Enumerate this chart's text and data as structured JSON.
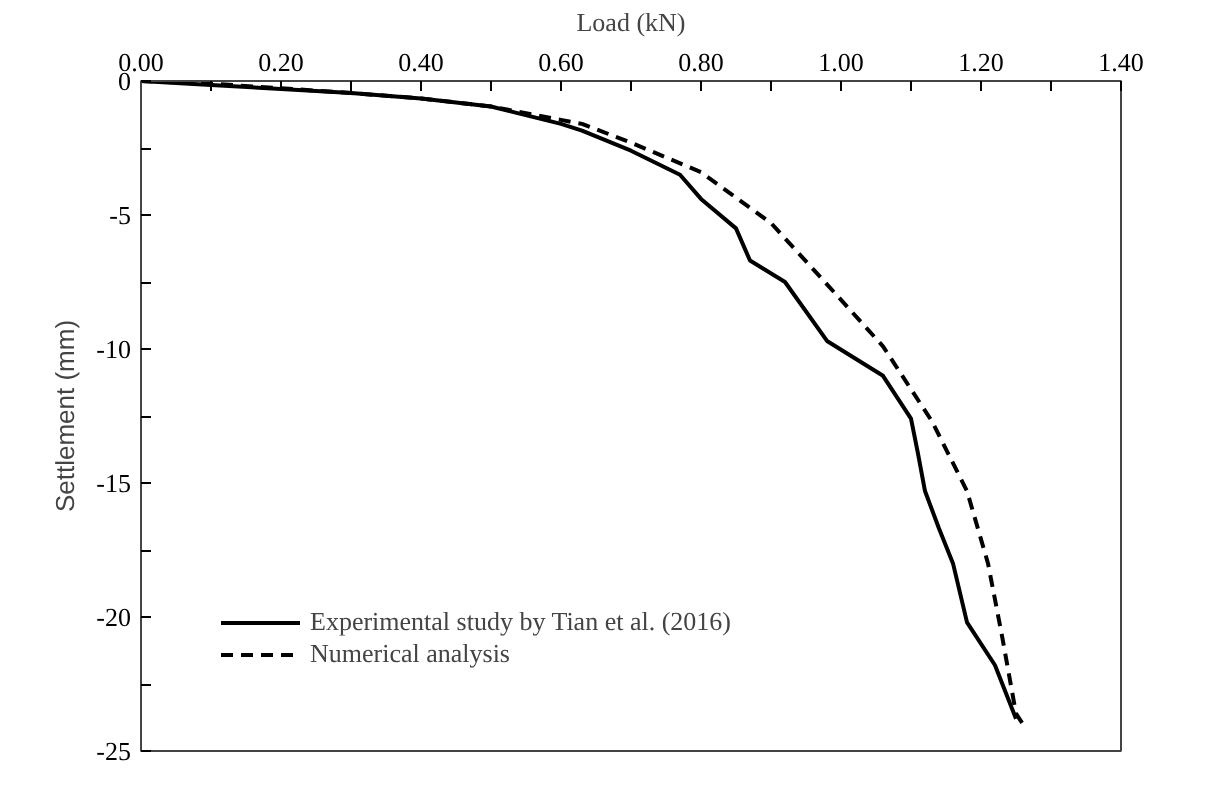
{
  "chart_data": {
    "type": "line",
    "xlabel": "Load (kN)",
    "ylabel": "Settlement (mm)",
    "xlim": [
      0,
      1.4
    ],
    "ylim": [
      -25,
      0
    ],
    "xticks": [
      {
        "value": 0,
        "label": "0.00"
      },
      {
        "value": 0.2,
        "label": "0.20"
      },
      {
        "value": 0.4,
        "label": "0.40"
      },
      {
        "value": 0.6,
        "label": "0.60"
      },
      {
        "value": 0.8,
        "label": "0.80"
      },
      {
        "value": 1.0,
        "label": "1.00"
      },
      {
        "value": 1.2,
        "label": "1.20"
      },
      {
        "value": 1.4,
        "label": "1.40"
      }
    ],
    "yticks": [
      -25,
      -20,
      -15,
      -10,
      -5,
      0
    ],
    "grid": false,
    "legend": "bottom left",
    "marker": "none",
    "series": [
      {
        "name": "Experimental study by Tian et al. (2016)",
        "color": "#000000",
        "line_style": "solid",
        "x": [
          0,
          0.1,
          0.2,
          0.3,
          0.4,
          0.5,
          0.6,
          0.63,
          0.7,
          0.77,
          0.8,
          0.85,
          0.87,
          0.92,
          0.98,
          1.06,
          1.1,
          1.11,
          1.12,
          1.14,
          1.16,
          1.17,
          1.18,
          1.22,
          1.25
        ],
        "values": [
          0,
          -0.15,
          -0.3,
          -0.45,
          -0.65,
          -0.95,
          -1.6,
          -1.85,
          -2.6,
          -3.5,
          -4.4,
          -5.5,
          -6.7,
          -7.5,
          -9.7,
          -11.0,
          -12.6,
          -13.9,
          -15.3,
          -16.7,
          -18.0,
          -19.1,
          -20.2,
          -21.8,
          -23.8
        ]
      },
      {
        "name": "Numerical analysis",
        "color": "#000000",
        "line_style": "dashed",
        "x": [
          0,
          0.1,
          0.2,
          0.3,
          0.4,
          0.5,
          0.6,
          0.63,
          0.7,
          0.8,
          0.9,
          0.97,
          1.06,
          1.13,
          1.18,
          1.21,
          1.23,
          1.25,
          1.26
        ],
        "values": [
          0,
          -0.1,
          -0.27,
          -0.45,
          -0.65,
          -0.95,
          -1.45,
          -1.6,
          -2.3,
          -3.4,
          -5.3,
          -7.3,
          -9.9,
          -12.7,
          -15.3,
          -18.0,
          -20.7,
          -23.6,
          -24.0
        ]
      }
    ]
  }
}
